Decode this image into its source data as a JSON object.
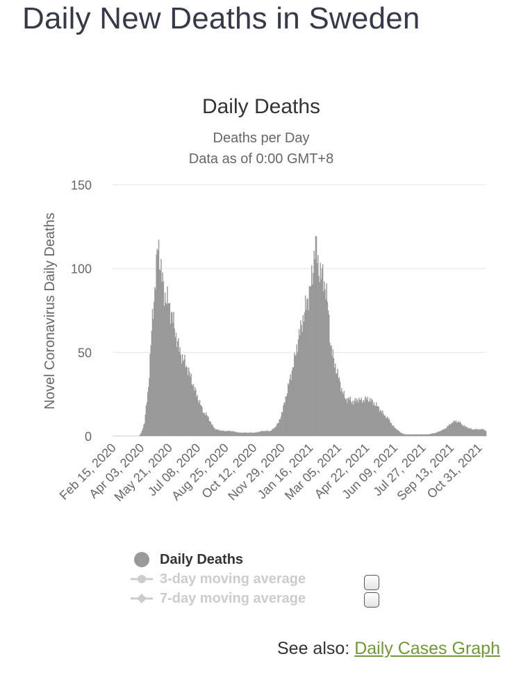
{
  "page": {
    "title": "Daily New Deaths in Sweden"
  },
  "chart_data": {
    "type": "bar",
    "title": "Daily Deaths",
    "subtitle_lines": [
      "Deaths per Day",
      "Data as of 0:00 GMT+8"
    ],
    "ylabel": "Novel Coronavirus Daily Deaths",
    "xlabel": "",
    "ylim": [
      0,
      150
    ],
    "yticks": [
      0,
      50,
      100,
      150
    ],
    "grid": true,
    "x_tick_labels": [
      "Feb 15, 2020",
      "Apr 03, 2020",
      "May 21, 2020",
      "Jul 08, 2020",
      "Aug 25, 2020",
      "Oct 12, 2020",
      "Nov 29, 2020",
      "Jan 16, 2021",
      "Mar 05, 2021",
      "Apr 22, 2021",
      "Jun 09, 2021",
      "Jul 27, 2021",
      "Sep 13, 2021",
      "Oct 31, 2021"
    ],
    "start_date": "Feb 15, 2020",
    "end_date": "Nov 14, 2021",
    "bar_color": "#999999",
    "keyframes": [
      [
        0,
        0
      ],
      [
        33,
        0
      ],
      [
        36,
        2
      ],
      [
        40,
        8
      ],
      [
        45,
        30
      ],
      [
        50,
        70
      ],
      [
        55,
        100
      ],
      [
        57,
        115
      ],
      [
        59,
        108
      ],
      [
        62,
        95
      ],
      [
        65,
        85
      ],
      [
        70,
        80
      ],
      [
        75,
        72
      ],
      [
        80,
        60
      ],
      [
        85,
        50
      ],
      [
        90,
        45
      ],
      [
        95,
        40
      ],
      [
        100,
        33
      ],
      [
        105,
        26
      ],
      [
        110,
        20
      ],
      [
        115,
        14
      ],
      [
        120,
        12
      ],
      [
        125,
        7
      ],
      [
        130,
        4
      ],
      [
        140,
        3
      ],
      [
        150,
        3
      ],
      [
        160,
        2
      ],
      [
        170,
        2
      ],
      [
        180,
        2
      ],
      [
        190,
        3
      ],
      [
        200,
        3
      ],
      [
        205,
        5
      ],
      [
        210,
        8
      ],
      [
        215,
        15
      ],
      [
        220,
        25
      ],
      [
        225,
        35
      ],
      [
        230,
        45
      ],
      [
        235,
        58
      ],
      [
        240,
        68
      ],
      [
        245,
        78
      ],
      [
        250,
        88
      ],
      [
        253,
        95
      ],
      [
        256,
        115
      ],
      [
        258,
        112
      ],
      [
        260,
        102
      ],
      [
        263,
        98
      ],
      [
        266,
        95
      ],
      [
        270,
        88
      ],
      [
        273,
        75
      ],
      [
        276,
        55
      ],
      [
        280,
        45
      ],
      [
        285,
        37
      ],
      [
        290,
        28
      ],
      [
        295,
        22
      ],
      [
        300,
        22
      ],
      [
        305,
        20
      ],
      [
        310,
        22
      ],
      [
        315,
        21
      ],
      [
        320,
        22
      ],
      [
        325,
        22
      ],
      [
        330,
        20
      ],
      [
        335,
        18
      ],
      [
        340,
        15
      ],
      [
        345,
        12
      ],
      [
        350,
        10
      ],
      [
        355,
        6
      ],
      [
        360,
        4
      ],
      [
        365,
        2
      ],
      [
        370,
        1
      ],
      [
        380,
        1
      ],
      [
        390,
        1
      ],
      [
        400,
        1
      ],
      [
        410,
        2
      ],
      [
        415,
        3
      ],
      [
        420,
        4
      ],
      [
        425,
        6
      ],
      [
        430,
        8
      ],
      [
        435,
        9
      ],
      [
        440,
        8
      ],
      [
        445,
        6
      ],
      [
        450,
        5
      ],
      [
        455,
        4
      ],
      [
        460,
        4
      ],
      [
        465,
        4
      ],
      [
        470,
        4
      ],
      [
        473,
        3
      ]
    ],
    "series": [
      {
        "name": "Daily Deaths",
        "visible": true
      },
      {
        "name": "3-day moving average",
        "visible": false
      },
      {
        "name": "7-day moving average",
        "visible": false
      }
    ]
  },
  "see_also": {
    "label": "See also:",
    "link_text": "Daily Cases Graph"
  }
}
